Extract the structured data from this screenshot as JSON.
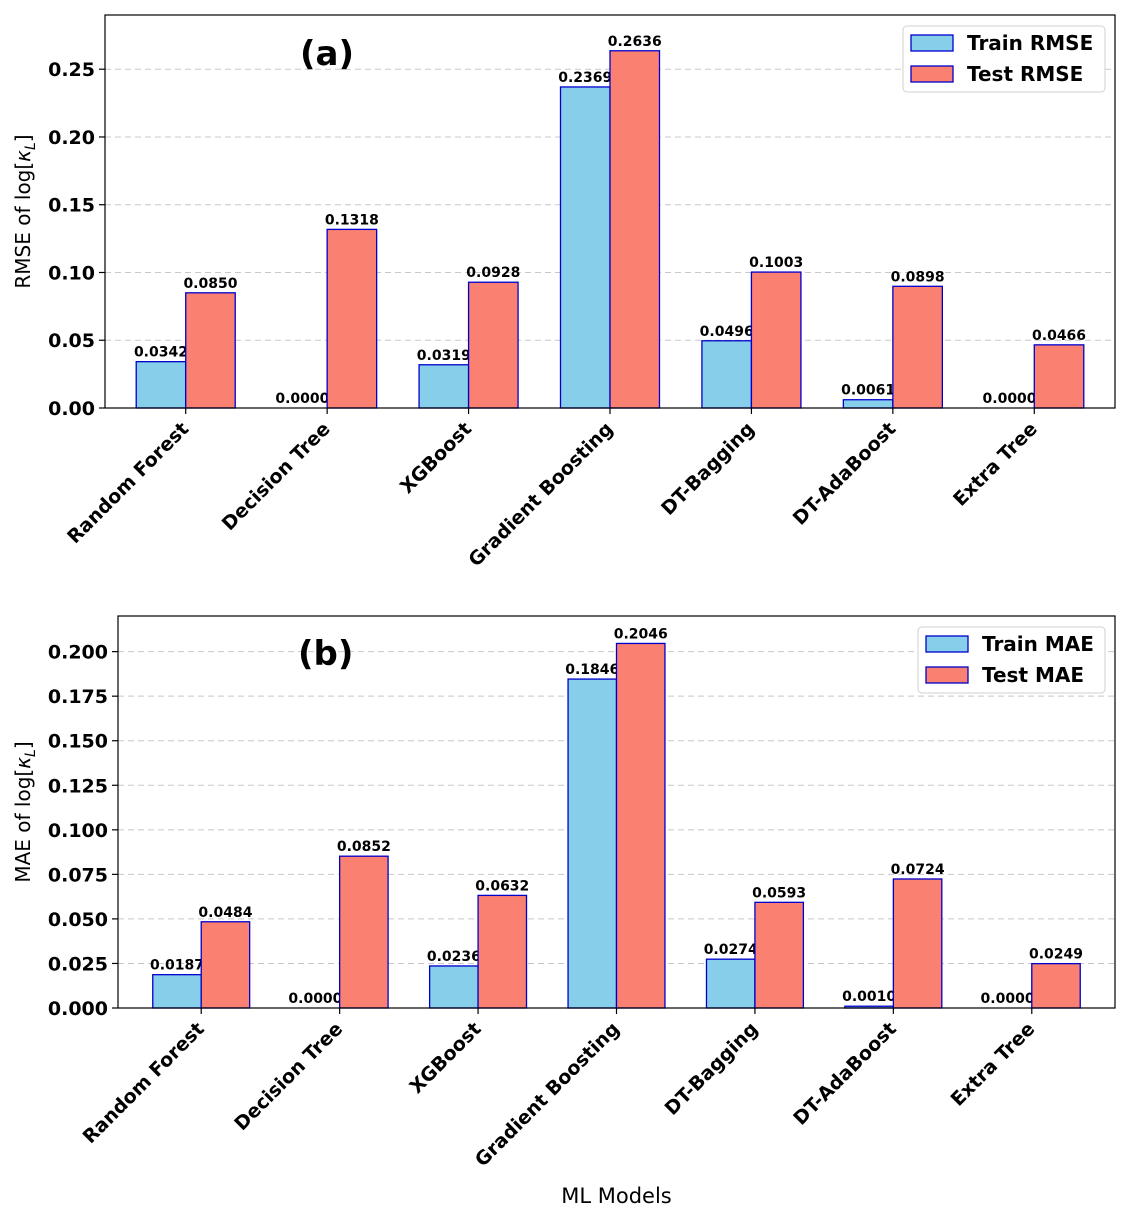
{
  "colors": {
    "train": "#87CEEB",
    "test": "#FA8072",
    "edge": "#0000CD"
  },
  "chart_data": [
    {
      "type": "bar",
      "panel_label": "(a)",
      "ylabel_prefix": "RMSE of log[",
      "ylabel_symbol": "κ",
      "ylabel_sub": "L",
      "ylabel_suffix": "]",
      "ylim": [
        0,
        0.29
      ],
      "yticks": [
        "0.00",
        "0.05",
        "0.10",
        "0.15",
        "0.20",
        "0.25"
      ],
      "ytick_values": [
        0,
        0.05,
        0.1,
        0.15,
        0.2,
        0.25
      ],
      "categories": [
        "Random Forest",
        "Decision Tree",
        "XGBoost",
        "Gradient Boosting",
        "DT-Bagging",
        "DT-AdaBoost",
        "Extra Tree"
      ],
      "series": [
        {
          "name": "Train RMSE",
          "values": [
            0.0342,
            0.0,
            0.0319,
            0.2369,
            0.0496,
            0.0061,
            0.0
          ],
          "labels": [
            "0.0342",
            "0.0000",
            "0.0319",
            "0.2369",
            "0.0496",
            "0.0061",
            "0.0000"
          ]
        },
        {
          "name": "Test RMSE",
          "values": [
            0.085,
            0.1318,
            0.0928,
            0.2636,
            0.1003,
            0.0898,
            0.0466
          ],
          "labels": [
            "0.0850",
            "0.1318",
            "0.0928",
            "0.2636",
            "0.1003",
            "0.0898",
            "0.0466"
          ]
        }
      ],
      "legend": "top-right",
      "grid": "y dashed"
    },
    {
      "type": "bar",
      "panel_label": "(b)",
      "ylabel_prefix": "MAE of log[",
      "ylabel_symbol": "κ",
      "ylabel_sub": "L",
      "ylabel_suffix": "]",
      "ylim": [
        0,
        0.22
      ],
      "yticks": [
        "0.000",
        "0.025",
        "0.050",
        "0.075",
        "0.100",
        "0.125",
        "0.150",
        "0.175",
        "0.200"
      ],
      "ytick_values": [
        0,
        0.025,
        0.05,
        0.075,
        0.1,
        0.125,
        0.15,
        0.175,
        0.2
      ],
      "categories": [
        "Random Forest",
        "Decision Tree",
        "XGBoost",
        "Gradient Boosting",
        "DT-Bagging",
        "DT-AdaBoost",
        "Extra Tree"
      ],
      "series": [
        {
          "name": "Train MAE",
          "values": [
            0.0187,
            0.0,
            0.0236,
            0.1846,
            0.0274,
            0.001,
            0.0
          ],
          "labels": [
            "0.0187",
            "0.0000",
            "0.0236",
            "0.1846",
            "0.0274",
            "0.0010",
            "0.0000"
          ]
        },
        {
          "name": "Test MAE",
          "values": [
            0.0484,
            0.0852,
            0.0632,
            0.2046,
            0.0593,
            0.0724,
            0.0249
          ],
          "labels": [
            "0.0484",
            "0.0852",
            "0.0632",
            "0.2046",
            "0.0593",
            "0.0724",
            "0.0249"
          ]
        }
      ],
      "xlabel": "ML Models",
      "legend": "top-right",
      "grid": "y dashed"
    }
  ]
}
